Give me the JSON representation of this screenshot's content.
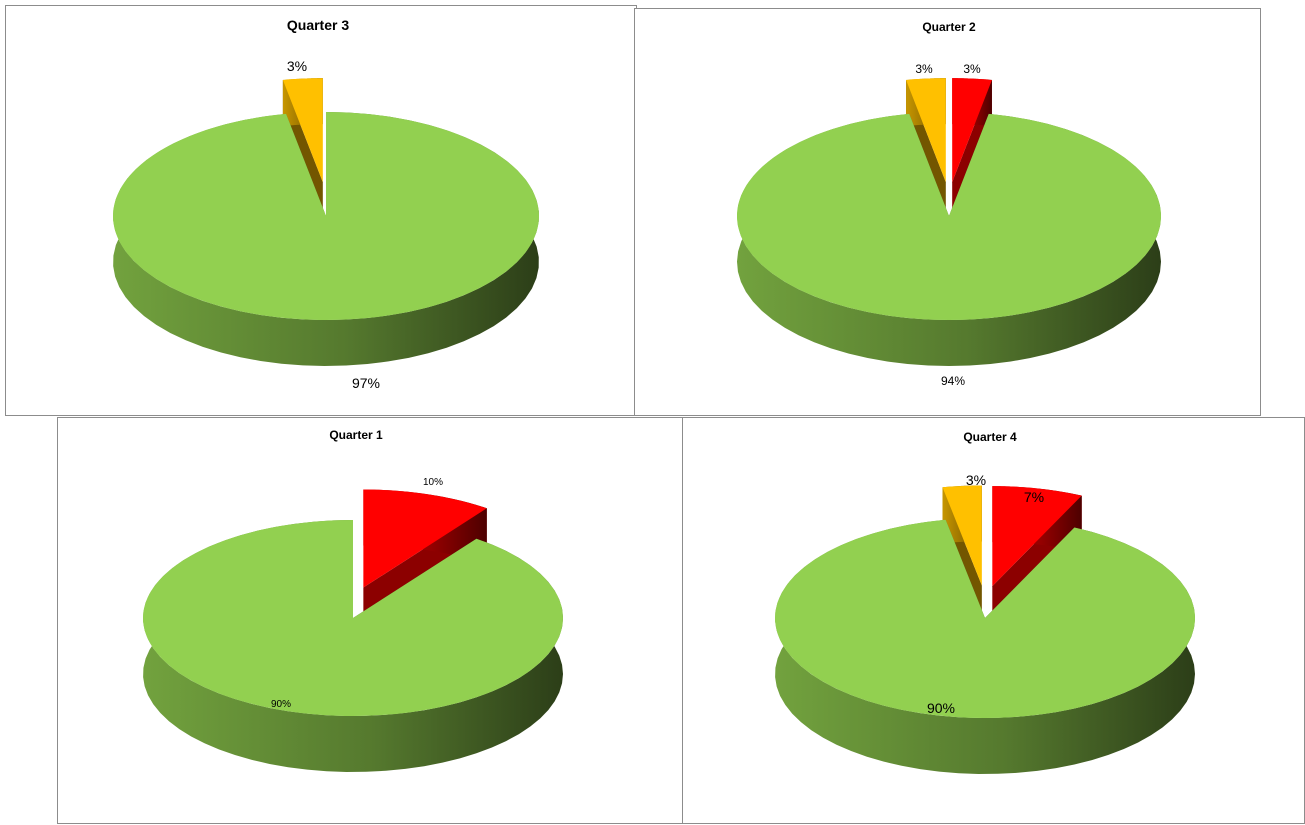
{
  "chart_data": [
    {
      "type": "pie",
      "title": "Quarter 3",
      "slices": [
        {
          "value": 97,
          "label": "97%",
          "color": "#92d050"
        },
        {
          "value": 3,
          "label": "3%",
          "color": "#ffc000"
        }
      ]
    },
    {
      "type": "pie",
      "title": "Quarter 2",
      "slices": [
        {
          "value": 94,
          "label": "94%",
          "color": "#92d050"
        },
        {
          "value": 3,
          "label": "3%",
          "color": "#ffc000"
        },
        {
          "value": 3,
          "label": "3%",
          "color": "#ff0000"
        }
      ]
    },
    {
      "type": "pie",
      "title": "Quarter 1",
      "slices": [
        {
          "value": 90,
          "label": "90%",
          "color": "#92d050"
        },
        {
          "value": 10,
          "label": "10%",
          "color": "#ff0000"
        }
      ]
    },
    {
      "type": "pie",
      "title": "Quarter 4",
      "slices": [
        {
          "value": 90,
          "label": "90%",
          "color": "#92d050"
        },
        {
          "value": 3,
          "label": "3%",
          "color": "#ffc000"
        },
        {
          "value": 7,
          "label": "7%",
          "color": "#ff0000"
        }
      ]
    }
  ]
}
